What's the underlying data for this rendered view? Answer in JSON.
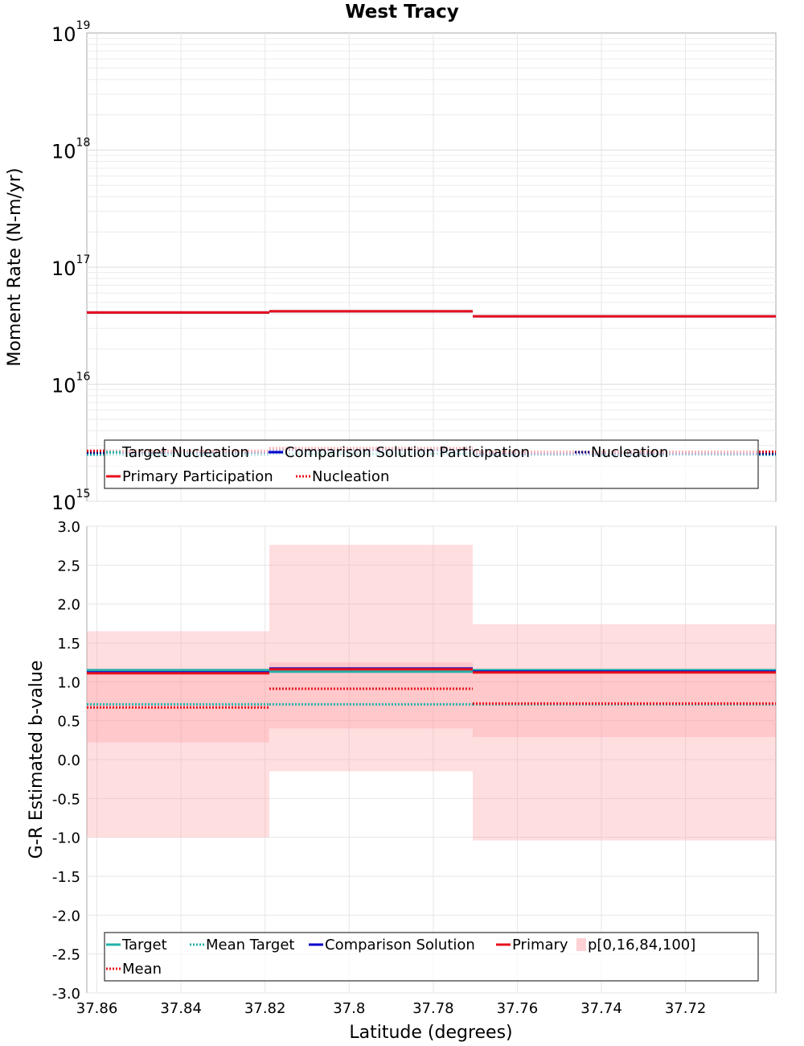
{
  "chart_data": [
    {
      "type": "line",
      "title": "West Tracy",
      "xlabel": "Latitude (degrees)",
      "ylabel": "Moment Rate (N-m/yr)",
      "yscale": "log",
      "ylim": [
        1000000000000000.0,
        1e+19
      ],
      "xlim": [
        37.8624,
        37.6985
      ],
      "y_tick_exponents": [
        "15",
        "16",
        "17",
        "18",
        "19"
      ],
      "y_tick_base": "10",
      "x_edges": [
        37.8624,
        37.819,
        37.7706,
        37.6985
      ],
      "series": [
        {
          "name": "Target Nucleation",
          "color": "#20b2aa",
          "style": "dotted",
          "values": [
            2500000000000000.0,
            2550000000000000.0,
            2500000000000000.0
          ]
        },
        {
          "name": "Comparison Solution Participation",
          "color": "#0000cc",
          "style": "solid",
          "values": [
            4.1e+16,
            4.2e+16,
            3.8e+16
          ]
        },
        {
          "name": "Nucleation",
          "color": "#000080",
          "style": "dotted",
          "values": [
            2600000000000000.0,
            2750000000000000.0,
            2550000000000000.0
          ]
        },
        {
          "name": "Primary Participation",
          "color": "#e8101c",
          "style": "solid",
          "values": [
            4.1e+16,
            4.2e+16,
            3.8e+16
          ]
        },
        {
          "name": "Nucleation",
          "color": "#e8101c",
          "style": "dotted",
          "values": [
            2700000000000000.0,
            2850000000000000.0,
            2650000000000000.0
          ]
        }
      ]
    },
    {
      "type": "line",
      "title": "",
      "xlabel": "Latitude (degrees)",
      "ylabel": "G-R Estimated b-value",
      "ylim": [
        -3.0,
        3.0
      ],
      "xlim": [
        37.8624,
        37.6985
      ],
      "x_ticks": [
        "37.86",
        "37.84",
        "37.82",
        "37.8",
        "37.78",
        "37.76",
        "37.74",
        "37.72"
      ],
      "x_tick_values": [
        37.86,
        37.84,
        37.82,
        37.8,
        37.78,
        37.76,
        37.74,
        37.72
      ],
      "y_ticks": [
        "3.0",
        "2.5",
        "2.0",
        "1.5",
        "1.0",
        "0.5",
        "0.0",
        "-0.5",
        "-1.0",
        "-1.5",
        "-2.0",
        "-2.5",
        "-3.0"
      ],
      "y_tick_values": [
        3.0,
        2.5,
        2.0,
        1.5,
        1.0,
        0.5,
        0.0,
        -0.5,
        -1.0,
        -1.5,
        -2.0,
        -2.5,
        -3.0
      ],
      "x_edges": [
        37.8624,
        37.819,
        37.7706,
        37.6985
      ],
      "series": [
        {
          "name": "Target",
          "color": "#20b2aa",
          "style": "solid",
          "values": [
            1.15,
            1.13,
            1.15
          ]
        },
        {
          "name": "Mean Target",
          "color": "#20b2aa",
          "style": "dotted",
          "values": [
            0.71,
            0.71,
            0.71
          ]
        },
        {
          "name": "Comparison Solution",
          "color": "#0000cc",
          "style": "solid",
          "values": [
            1.12,
            1.17,
            1.13
          ]
        },
        {
          "name": "Primary",
          "color": "#e8101c",
          "style": "solid",
          "values": [
            1.11,
            1.16,
            1.12
          ]
        },
        {
          "name": "Mean",
          "color": "#e8101c",
          "style": "dotted",
          "values": [
            0.67,
            0.91,
            0.72
          ]
        }
      ],
      "band": {
        "name": "p[0,16,84,100]",
        "color": "#ff9aa2",
        "p0": [
          -1.0,
          -0.15,
          -1.04
        ],
        "p16": [
          0.22,
          0.4,
          0.29
        ],
        "p84": [
          1.17,
          1.25,
          1.17
        ],
        "p100": [
          1.65,
          2.76,
          1.74
        ]
      }
    }
  ]
}
